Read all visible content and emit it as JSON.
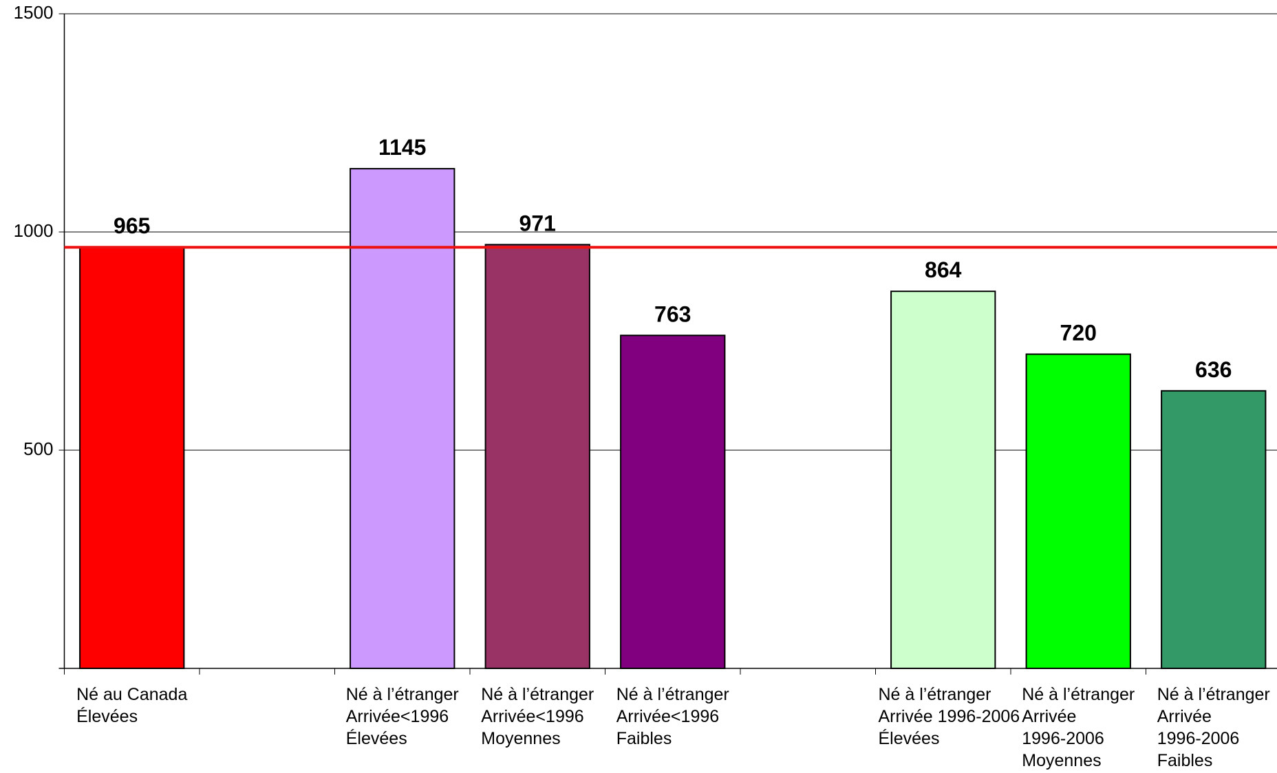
{
  "chart_data": {
    "type": "bar",
    "categories": [
      "Né au Canada\nÉlevées",
      null,
      "Né à l’étranger\nArrivée<1996\nÉlevées",
      "Né à l’étranger\nArrivée<1996\nMoyennes",
      "Né à l’étranger\nArrivée<1996\nFaibles",
      null,
      "Né à l’étranger\nArrivée 1996-2006\nÉlevées",
      "Né à l’étranger\nArrivée\n1996-2006\nMoyennes",
      "Né à l’étranger\nArrivée\n1996-2006\nFaibles"
    ],
    "values": [
      965,
      null,
      1145,
      971,
      763,
      null,
      864,
      720,
      636
    ],
    "colors": [
      "#ff0000",
      null,
      "#cc99ff",
      "#993366",
      "#800080",
      null,
      "#ccffcc",
      "#00ff00",
      "#339966"
    ],
    "reference_line": 965,
    "reference_color": "#ee1111",
    "ylim": [
      0,
      1500
    ],
    "yticks": [
      500,
      1000,
      1500
    ],
    "grid": true
  }
}
